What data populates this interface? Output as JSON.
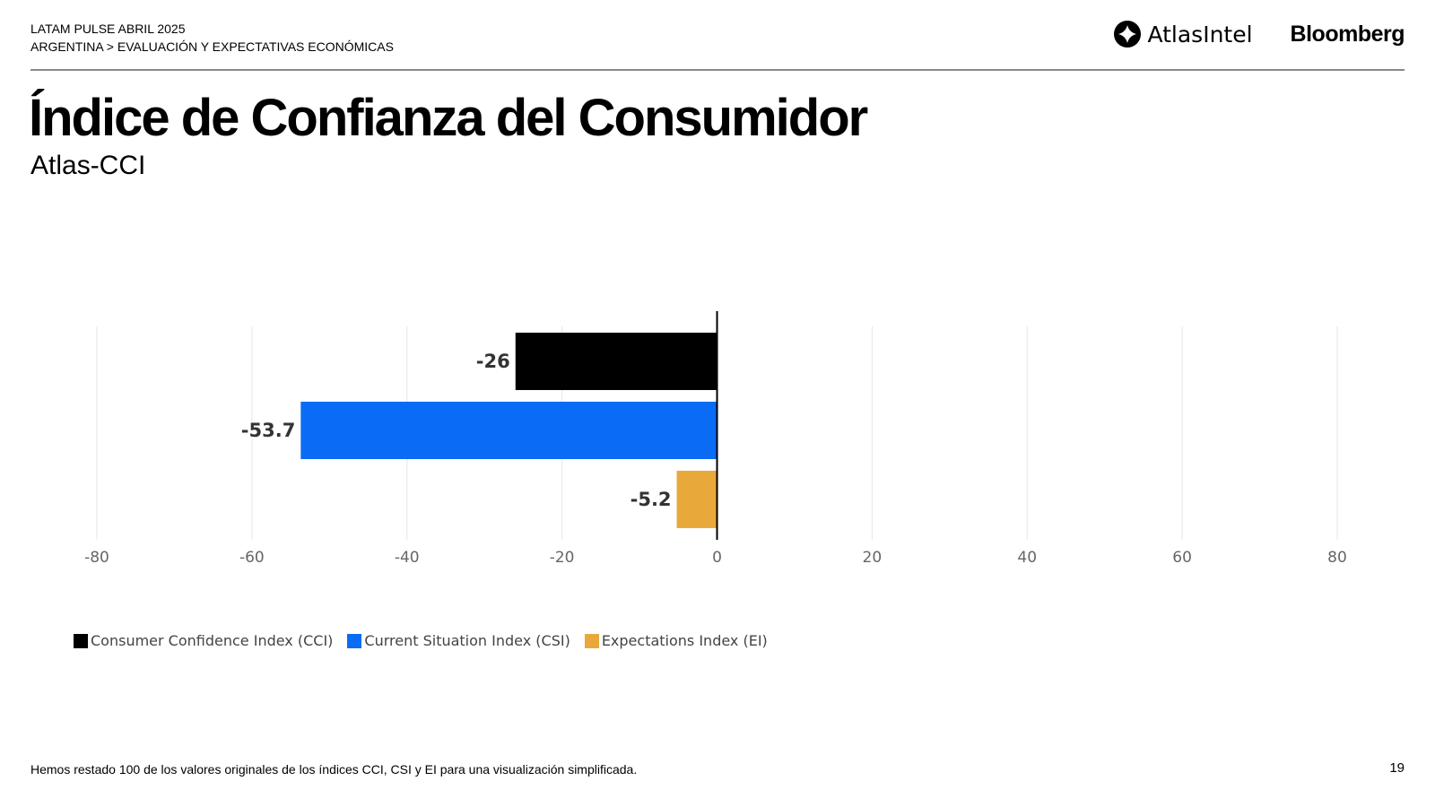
{
  "header": {
    "line1": "LATAM PULSE ABRIL 2025",
    "line2": "ARGENTINA > EVALUACIÓN Y EXPECTATIVAS ECONÓMICAS",
    "logo_atlas": "AtlasIntel",
    "logo_bloomberg": "Bloomberg"
  },
  "title": "Índice de Confianza del Consumidor",
  "subtitle": "Atlas-CCI",
  "chart_data": {
    "type": "bar",
    "orientation": "horizontal",
    "categories": [
      "Consumer Confidence Index (CCI)",
      "Current Situation Index (CSI)",
      "Expectations Index (EI)"
    ],
    "values": [
      -26,
      -53.7,
      -5.2
    ],
    "labels": [
      "-26",
      "-53.7",
      "-5.2"
    ],
    "colors": [
      "#000000",
      "#0a6cf5",
      "#e9a93a"
    ],
    "xlim": [
      -80,
      80
    ],
    "xticks": [
      -80,
      -60,
      -40,
      -20,
      0,
      20,
      40,
      60,
      80
    ],
    "grid": true,
    "legend": "bottom-left"
  },
  "footer": {
    "note": "Hemos restado 100 de los valores originales de los índices CCI, CSI y EI para una visualización simplificada.",
    "page": "19"
  }
}
